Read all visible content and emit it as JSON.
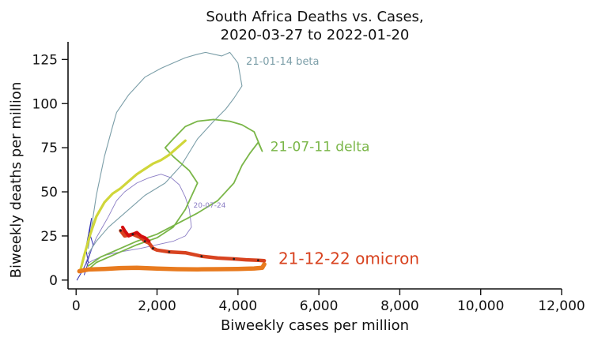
{
  "chart_data": {
    "type": "line",
    "title": [
      "South Africa Deaths vs. Cases,",
      "2020-03-27 to 2022-01-20"
    ],
    "xlabel": "Biweekly cases per million",
    "ylabel": "Biweekly deaths per million",
    "xlim": [
      -200,
      12000
    ],
    "ylim": [
      -5,
      135
    ],
    "x_ticks": [
      0,
      2000,
      4000,
      6000,
      8000,
      10000,
      12000
    ],
    "x_tick_labels": [
      "0",
      "2,000",
      "4,000",
      "6,000",
      "8,000",
      "10,000",
      "12,000"
    ],
    "y_ticks": [
      0,
      25,
      50,
      75,
      100,
      125
    ],
    "y_tick_labels": [
      "0",
      "25",
      "50",
      "75",
      "100",
      "125"
    ],
    "grid": false,
    "legend": "none",
    "series": [
      {
        "color": "#2b2bb0",
        "width": 1.0,
        "x": [
          20,
          150,
          300,
          420,
          330,
          380,
          240,
          300,
          200
        ],
        "y": [
          0,
          5,
          12,
          20,
          27,
          35,
          18,
          10,
          3
        ]
      },
      {
        "color": "#8a7cc4",
        "width": 0.9,
        "x": [
          240,
          500,
          800,
          1000,
          1200,
          1500,
          1800,
          2100,
          2350,
          2550,
          2700,
          2800,
          2850,
          2700,
          2400,
          2000,
          1600,
          1100,
          700,
          400,
          250
        ],
        "y": [
          10,
          24,
          36,
          45,
          50,
          55,
          58,
          60,
          58,
          54,
          47,
          40,
          30,
          25,
          22,
          20,
          18,
          16,
          14,
          11,
          9
        ]
      },
      {
        "color": "#7b9ea8",
        "width": 1.1,
        "x": [
          300,
          500,
          700,
          900,
          1000,
          1300,
          1700,
          2100,
          2400,
          2700,
          3000,
          3200,
          3400,
          3600,
          3800,
          3900,
          4000,
          4100,
          3900,
          3700,
          3400,
          3000,
          2600,
          2200,
          1700,
          1200,
          800,
          500,
          300
        ],
        "y": [
          18,
          48,
          70,
          87,
          95,
          105,
          115,
          120,
          123,
          126,
          128,
          129,
          128,
          127,
          129,
          126,
          123,
          110,
          103,
          97,
          90,
          80,
          65,
          55,
          48,
          38,
          30,
          22,
          15
        ]
      },
      {
        "color": "#7ab648",
        "width": 1.8,
        "x": [
          300,
          600,
          1000,
          1500,
          2000,
          2500,
          3000,
          3500,
          3900,
          4100,
          4300,
          4500,
          4600,
          4400,
          4100,
          3800,
          3400,
          3000,
          2700,
          2400,
          2200,
          2400,
          2800,
          3000,
          2700,
          2400,
          2000,
          1500,
          1000,
          500,
          300
        ],
        "y": [
          8,
          13,
          17,
          22,
          26,
          32,
          38,
          45,
          55,
          65,
          72,
          78,
          73,
          84,
          88,
          90,
          91,
          90,
          87,
          80,
          75,
          70,
          62,
          55,
          40,
          30,
          24,
          20,
          15,
          10,
          6
        ]
      },
      {
        "color": "#d0d63a",
        "width": 3.2,
        "x": [
          100,
          200,
          350,
          500,
          700,
          900,
          1100,
          1300,
          1500,
          1700,
          1900,
          2100,
          2300,
          2450,
          2600,
          2700
        ],
        "y": [
          5,
          14,
          26,
          36,
          44,
          49,
          52,
          56,
          60,
          63,
          66,
          68,
          71,
          74,
          77,
          79
        ]
      },
      {
        "color": "#e87a1e",
        "width": 5.5,
        "x": [
          80,
          300,
          700,
          1100,
          1500,
          2000,
          2500,
          3000,
          3500,
          4000,
          4400,
          4600,
          4650
        ],
        "y": [
          5,
          6,
          6.3,
          6.8,
          7,
          6.5,
          6.2,
          6.1,
          6.2,
          6.3,
          6.6,
          7,
          9
        ]
      },
      {
        "color": "#d84320",
        "width": 4.5,
        "x": [
          1100,
          1200,
          1400,
          1600,
          1700,
          1800,
          1900,
          2000,
          2300,
          2700,
          3100,
          3500,
          3900,
          4200,
          4500,
          4650
        ],
        "y": [
          28,
          25,
          26,
          24,
          22,
          21,
          18,
          17,
          16,
          15.5,
          13.5,
          12.5,
          12,
          11.5,
          11.2,
          11
        ]
      },
      {
        "color": "#d40f0f",
        "width": 4.0,
        "x": [
          1150,
          1200,
          1300,
          1400,
          1500,
          1600,
          1700,
          1800
        ],
        "y": [
          30,
          28,
          25,
          26,
          27,
          25,
          24,
          22
        ]
      }
    ],
    "annotations": [
      {
        "text": "21-01-14 beta",
        "x": 4200,
        "y": 122,
        "color": "#7b9ea8",
        "size": "small"
      },
      {
        "text": "21-07-11 delta",
        "x": 4800,
        "y": 73,
        "color": "#7ab648",
        "size": "medium"
      },
      {
        "text": "20-07-24",
        "x": 2900,
        "y": 41,
        "color": "#8a7cc4",
        "size": "tiny"
      },
      {
        "text": "21-12-22 omicron",
        "x": 5000,
        "y": 9,
        "color": "#d84320",
        "size": "large"
      }
    ]
  }
}
